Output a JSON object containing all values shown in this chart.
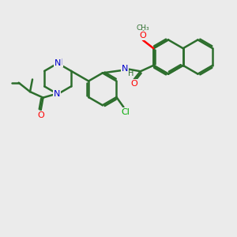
{
  "bg_color": "#ebebeb",
  "bond_color": "#2d6e2d",
  "bond_width": 1.8,
  "atom_colors": {
    "O": "#ff0000",
    "N": "#0000cc",
    "Cl": "#00aa00",
    "C": "#2d6e2d"
  },
  "figsize": [
    3.0,
    3.0
  ],
  "dpi": 100,
  "xlim": [
    0,
    10
  ],
  "ylim": [
    0,
    10
  ]
}
